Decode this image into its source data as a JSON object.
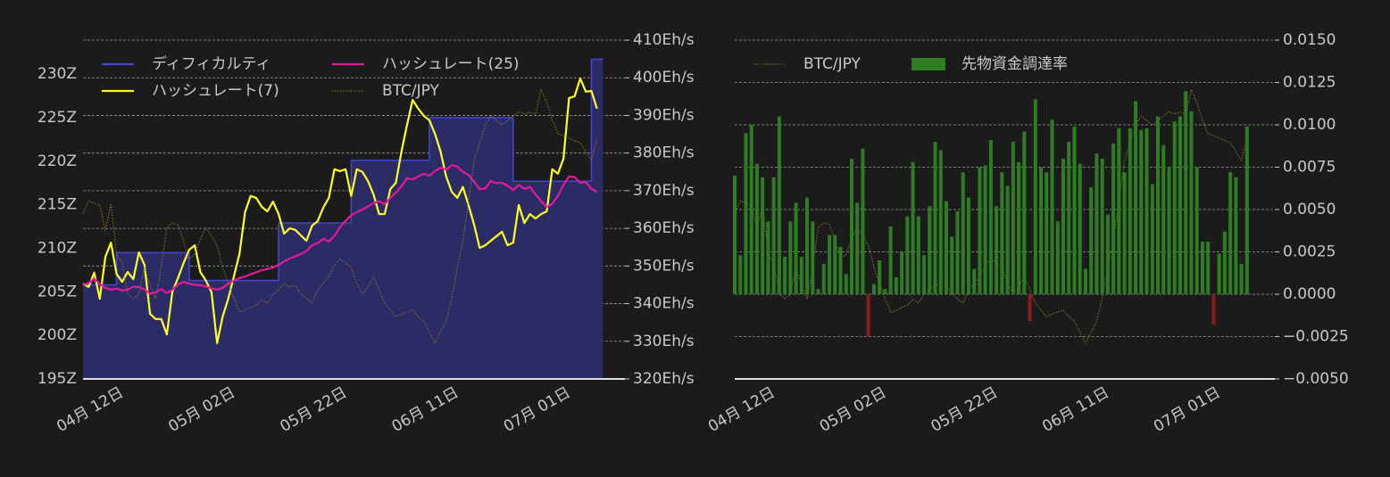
{
  "chart_data": [
    {
      "type": "line",
      "x": [
        "04-05",
        "04-06",
        "04-07",
        "04-08",
        "04-09",
        "04-10",
        "04-11",
        "04-12",
        "04-13",
        "04-14",
        "04-15",
        "04-16",
        "04-17",
        "04-18",
        "04-19",
        "04-20",
        "04-21",
        "04-22",
        "04-23",
        "04-24",
        "04-25",
        "04-26",
        "04-27",
        "04-28",
        "04-29",
        "04-30",
        "05-01",
        "05-02",
        "05-03",
        "05-04",
        "05-05",
        "05-06",
        "05-07",
        "05-08",
        "05-09",
        "05-10",
        "05-11",
        "05-12",
        "05-13",
        "05-14",
        "05-15",
        "05-16",
        "05-17",
        "05-18",
        "05-19",
        "05-20",
        "05-21",
        "05-22",
        "05-23",
        "05-24",
        "05-25",
        "05-26",
        "05-27",
        "05-28",
        "05-29",
        "05-30",
        "05-31",
        "06-01",
        "06-02",
        "06-03",
        "06-04",
        "06-05",
        "06-06",
        "06-07",
        "06-08",
        "06-09",
        "06-10",
        "06-11",
        "06-12",
        "06-13",
        "06-14",
        "06-15",
        "06-16",
        "06-17",
        "06-18",
        "06-19",
        "06-20",
        "06-21",
        "06-22",
        "06-23",
        "06-24",
        "06-25",
        "06-26",
        "06-27",
        "06-28",
        "06-29",
        "06-30",
        "07-01",
        "07-02",
        "07-03",
        "07-04",
        "07-05",
        "07-06"
      ],
      "xlim": [
        "04-05",
        "07-11"
      ],
      "xticks": [
        {
          "value": "04-12",
          "label": "04月 12日"
        },
        {
          "value": "05-02",
          "label": "05月 02日"
        },
        {
          "value": "05-22",
          "label": "05月 22日"
        },
        {
          "value": "06-11",
          "label": "06月 11日"
        },
        {
          "value": "07-01",
          "label": "07月 01日"
        }
      ],
      "ylim": [
        195,
        233.9
      ],
      "yticks": [
        {
          "value": 195,
          "label": "195Z"
        },
        {
          "value": 200,
          "label": "200Z"
        },
        {
          "value": 205,
          "label": "205Z"
        },
        {
          "value": 210,
          "label": "210Z"
        },
        {
          "value": 215,
          "label": "215Z"
        },
        {
          "value": 220,
          "label": "220Z"
        },
        {
          "value": 225,
          "label": "225Z"
        },
        {
          "value": 230,
          "label": "230Z"
        }
      ],
      "y2lim": [
        320,
        410
      ],
      "y2ticks": [
        {
          "value": 320,
          "label": "320Eh/s"
        },
        {
          "value": 330,
          "label": "330Eh/s"
        },
        {
          "value": 340,
          "label": "340Eh/s"
        },
        {
          "value": 350,
          "label": "350Eh/s"
        },
        {
          "value": 360,
          "label": "360Eh/s"
        },
        {
          "value": 370,
          "label": "370Eh/s"
        },
        {
          "value": 380,
          "label": "380Eh/s"
        },
        {
          "value": 390,
          "label": "390Eh/s"
        },
        {
          "value": 400,
          "label": "400Eh/s"
        },
        {
          "value": 410,
          "label": "410Eh/s"
        }
      ],
      "y3lim": [
        0,
        100
      ],
      "grid": "y2",
      "legend": "upper left",
      "series": [
        {
          "name": "ディフィカルティ",
          "color": "#4646d2",
          "fill": "#2b2b66",
          "step": "post",
          "values": [
            205.8,
            205.8,
            205.8,
            205.8,
            205.8,
            205.8,
            209.5,
            209.5,
            209.5,
            209.5,
            209.5,
            209.5,
            209.5,
            209.5,
            209.5,
            209.5,
            209.5,
            209.5,
            209.5,
            206.3,
            206.3,
            206.3,
            206.3,
            206.3,
            206.3,
            206.3,
            206.3,
            206.3,
            206.3,
            206.3,
            206.3,
            206.3,
            206.3,
            206.3,
            206.3,
            212.9,
            212.9,
            212.9,
            212.9,
            212.9,
            212.9,
            212.9,
            212.9,
            212.9,
            212.9,
            212.9,
            212.9,
            212.9,
            220.1,
            220.1,
            220.1,
            220.1,
            220.1,
            220.1,
            220.1,
            220.1,
            220.1,
            220.1,
            220.1,
            220.1,
            220.1,
            220.1,
            225.0,
            225.0,
            225.0,
            225.0,
            225.0,
            225.0,
            225.0,
            225.0,
            225.0,
            225.0,
            225.0,
            225.0,
            225.0,
            225.0,
            225.0,
            217.7,
            217.7,
            217.7,
            217.7,
            217.7,
            217.7,
            217.7,
            217.7,
            217.7,
            217.7,
            217.7,
            217.7,
            217.7,
            217.7,
            231.7,
            231.7
          ]
        },
        {
          "name": "ハッシュレート(7)",
          "color": "#ffff1e",
          "axis": "y2",
          "values": [
            345.3,
            344.4,
            348.2,
            341.3,
            352.4,
            356.2,
            347.9,
            345.8,
            348.4,
            346.5,
            353.6,
            350.3,
            337.3,
            335.9,
            335.9,
            331.8,
            343.2,
            346.8,
            350.8,
            354.3,
            355.5,
            348.4,
            346.1,
            343.0,
            329.5,
            336.6,
            341.3,
            347.2,
            353.2,
            364.3,
            368.6,
            368.1,
            365.7,
            364.5,
            367.1,
            363.8,
            358.6,
            360.0,
            359.6,
            358.1,
            356.7,
            360.7,
            361.9,
            365.5,
            368.1,
            375.7,
            375.2,
            375.7,
            368.6,
            375.7,
            375.0,
            372.6,
            369.0,
            363.8,
            363.8,
            370.4,
            372.1,
            380.4,
            387.5,
            394.1,
            391.8,
            389.9,
            388.7,
            385.1,
            380.4,
            373.8,
            369.7,
            368.1,
            371.0,
            366.2,
            361.0,
            354.8,
            355.5,
            356.7,
            357.9,
            359.1,
            355.5,
            356.2,
            366.2,
            361.4,
            363.8,
            362.6,
            363.8,
            364.5,
            375.7,
            374.5,
            378.5,
            394.6,
            395.1,
            399.8,
            396.3,
            396.5,
            391.8
          ]
        },
        {
          "name": "ハッシュレート(25)",
          "color": "#e6199b",
          "axis": "y2",
          "values": [
            344.9,
            345.5,
            346.6,
            345.3,
            344.2,
            343.7,
            344.0,
            343.5,
            343.7,
            344.5,
            344.4,
            343.8,
            342.6,
            343.0,
            343.9,
            342.8,
            343.7,
            345.1,
            345.8,
            345.3,
            345.0,
            344.9,
            344.6,
            344.0,
            343.7,
            344.2,
            345.3,
            346.1,
            346.8,
            347.2,
            347.8,
            348.3,
            348.9,
            349.2,
            349.6,
            350.3,
            351.2,
            352.0,
            352.6,
            353.2,
            354.0,
            355.5,
            356.1,
            357.2,
            356.5,
            358.0,
            360.3,
            362.0,
            363.5,
            364.3,
            365.0,
            365.8,
            366.7,
            367.2,
            366.4,
            368.1,
            369.5,
            371.2,
            373.3,
            373.0,
            373.8,
            374.5,
            374.0,
            375.2,
            376.1,
            375.6,
            376.8,
            376.4,
            375.0,
            374.2,
            372.4,
            370.4,
            370.6,
            372.6,
            372.0,
            372.1,
            371.3,
            370.2,
            371.5,
            370.5,
            371.0,
            369.0,
            367.2,
            365.7,
            366.5,
            368.6,
            371.5,
            373.8,
            373.6,
            372.1,
            372.3,
            370.5,
            369.7
          ]
        },
        {
          "name": "BTC/JPY",
          "color": "#8c7a2c",
          "axis": "y3",
          "dotted": true,
          "values": [
            48.7,
            52.6,
            51.8,
            51.3,
            43.9,
            51.8,
            36.8,
            34.2,
            25.0,
            23.7,
            25.0,
            32.9,
            27.6,
            23.7,
            32.9,
            44.7,
            46.1,
            45.5,
            40.8,
            35.5,
            36.8,
            41.3,
            44.7,
            42.1,
            39.5,
            32.9,
            28.2,
            23.7,
            19.7,
            20.3,
            21.1,
            21.8,
            23.4,
            22.4,
            25.0,
            26.3,
            28.2,
            27.1,
            27.6,
            25.0,
            23.7,
            22.4,
            26.3,
            28.2,
            30.3,
            33.4,
            35.5,
            34.2,
            32.9,
            28.2,
            25.0,
            27.1,
            30.3,
            26.3,
            22.4,
            20.3,
            18.4,
            19.2,
            19.7,
            20.3,
            18.4,
            17.1,
            13.9,
            10.5,
            13.9,
            17.1,
            23.7,
            32.9,
            40.8,
            52.6,
            64.5,
            69.7,
            75.0,
            77.6,
            76.3,
            75.0,
            76.3,
            77.6,
            78.9,
            78.2,
            78.7,
            78.2,
            85.5,
            81.6,
            76.3,
            72.4,
            71.8,
            71.1,
            70.3,
            69.7,
            67.1,
            64.5,
            71.1
          ]
        }
      ]
    },
    {
      "type": "bar",
      "x": [
        "04-05",
        "04-06",
        "04-07",
        "04-08",
        "04-09",
        "04-10",
        "04-11",
        "04-12",
        "04-13",
        "04-14",
        "04-15",
        "04-16",
        "04-17",
        "04-18",
        "04-19",
        "04-20",
        "04-21",
        "04-22",
        "04-23",
        "04-24",
        "04-25",
        "04-26",
        "04-27",
        "04-28",
        "04-29",
        "04-30",
        "05-01",
        "05-02",
        "05-03",
        "05-04",
        "05-05",
        "05-06",
        "05-07",
        "05-08",
        "05-09",
        "05-10",
        "05-11",
        "05-12",
        "05-13",
        "05-14",
        "05-15",
        "05-16",
        "05-17",
        "05-18",
        "05-19",
        "05-20",
        "05-21",
        "05-22",
        "05-23",
        "05-24",
        "05-25",
        "05-26",
        "05-27",
        "05-28",
        "05-29",
        "05-30",
        "05-31",
        "06-01",
        "06-02",
        "06-03",
        "06-04",
        "06-05",
        "06-06",
        "06-07",
        "06-08",
        "06-09",
        "06-10",
        "06-11",
        "06-12",
        "06-13",
        "06-14",
        "06-15",
        "06-16",
        "06-17",
        "06-18",
        "06-19",
        "06-20",
        "06-21",
        "06-22",
        "06-23",
        "06-24",
        "06-25",
        "06-26",
        "06-27",
        "06-28",
        "06-29",
        "06-30",
        "07-01",
        "07-02",
        "07-03",
        "07-04",
        "07-05",
        "07-06"
      ],
      "xlim": [
        "04-05",
        "07-11"
      ],
      "xticks": [
        {
          "value": "04-12",
          "label": "04月 12日"
        },
        {
          "value": "05-02",
          "label": "05月 02日"
        },
        {
          "value": "05-22",
          "label": "05月 22日"
        },
        {
          "value": "06-11",
          "label": "06月 11日"
        },
        {
          "value": "07-01",
          "label": "07月 01日"
        }
      ],
      "ylim": [
        -0.005,
        0.015
      ],
      "yticks": [
        {
          "value": -0.005,
          "label": "−0.0050"
        },
        {
          "value": -0.0025,
          "label": "−0.0025"
        },
        {
          "value": 0,
          "label": "0.0000"
        },
        {
          "value": 0.0025,
          "label": "0.0025"
        },
        {
          "value": 0.005,
          "label": "0.0050"
        },
        {
          "value": 0.0075,
          "label": "0.0075"
        },
        {
          "value": 0.01,
          "label": "0.0100"
        },
        {
          "value": 0.0125,
          "label": "0.0125"
        },
        {
          "value": 0.015,
          "label": "0.0150"
        }
      ],
      "yaxis_side": "right",
      "y3lim": [
        0,
        100
      ],
      "grid": "y",
      "legend": "upper left",
      "series": [
        {
          "name": "BTC/JPY",
          "color": "#8c7a2c",
          "axis": "y3",
          "dotted": true,
          "values": [
            48.7,
            52.6,
            51.8,
            51.3,
            43.9,
            51.8,
            36.8,
            34.2,
            25.0,
            23.7,
            25.0,
            32.9,
            27.6,
            23.7,
            32.9,
            44.7,
            46.1,
            45.5,
            40.8,
            35.5,
            36.8,
            41.3,
            44.7,
            42.1,
            39.5,
            32.9,
            28.2,
            23.7,
            19.7,
            20.3,
            21.1,
            21.8,
            23.4,
            22.4,
            25.0,
            26.3,
            28.2,
            27.1,
            27.6,
            25.0,
            23.7,
            22.4,
            26.3,
            28.2,
            30.3,
            33.4,
            35.5,
            34.2,
            32.9,
            28.2,
            25.0,
            27.1,
            30.3,
            26.3,
            22.4,
            20.3,
            18.4,
            19.2,
            19.7,
            20.3,
            18.4,
            17.1,
            13.9,
            10.5,
            13.9,
            17.1,
            23.7,
            32.9,
            40.8,
            52.6,
            64.5,
            69.7,
            75.0,
            77.6,
            76.3,
            75.0,
            76.3,
            77.6,
            78.9,
            78.2,
            78.7,
            78.2,
            85.5,
            81.6,
            76.3,
            72.4,
            71.8,
            71.1,
            70.3,
            69.7,
            67.1,
            64.5,
            71.1
          ]
        },
        {
          "name": "先物資金調達率",
          "type": "bar",
          "color": "#2e7d22",
          "negative_color": "#8a1c1c",
          "values": [
            0.007,
            0.0023,
            0.0095,
            0.01,
            0.0077,
            0.0069,
            0.0043,
            0.0069,
            0.0105,
            0.0022,
            0.0043,
            0.0054,
            0.0022,
            0.0057,
            0.0043,
            0.0003,
            0.0018,
            0.0035,
            0.0035,
            0.0028,
            0.0012,
            0.008,
            0.0054,
            0.0086,
            -0.0025,
            0.0006,
            0.002,
            0.0003,
            0.004,
            0.001,
            0.0025,
            0.0046,
            0.0078,
            0.0046,
            0.0023,
            0.0052,
            0.009,
            0.0085,
            0.0055,
            0.0034,
            0.0049,
            0.0072,
            0.0057,
            0.0015,
            0.0075,
            0.0076,
            0.0091,
            0.0052,
            0.0072,
            0.0064,
            0.009,
            0.0078,
            0.0096,
            -0.0016,
            0.0115,
            0.0075,
            0.0072,
            0.0103,
            0.0043,
            0.008,
            0.009,
            0.0099,
            0.0077,
            0.0015,
            0.0063,
            0.0083,
            0.008,
            0.0047,
            0.0089,
            0.0098,
            0.0072,
            0.0098,
            0.0114,
            0.0097,
            0.0098,
            0.0065,
            0.0105,
            0.0088,
            0.0075,
            0.0102,
            0.0105,
            0.012,
            0.0108,
            0.0075,
            0.0031,
            0.0031,
            -0.0018,
            0.0024,
            0.0037,
            0.0072,
            0.0069,
            0.0018,
            0.0099
          ]
        }
      ]
    }
  ]
}
